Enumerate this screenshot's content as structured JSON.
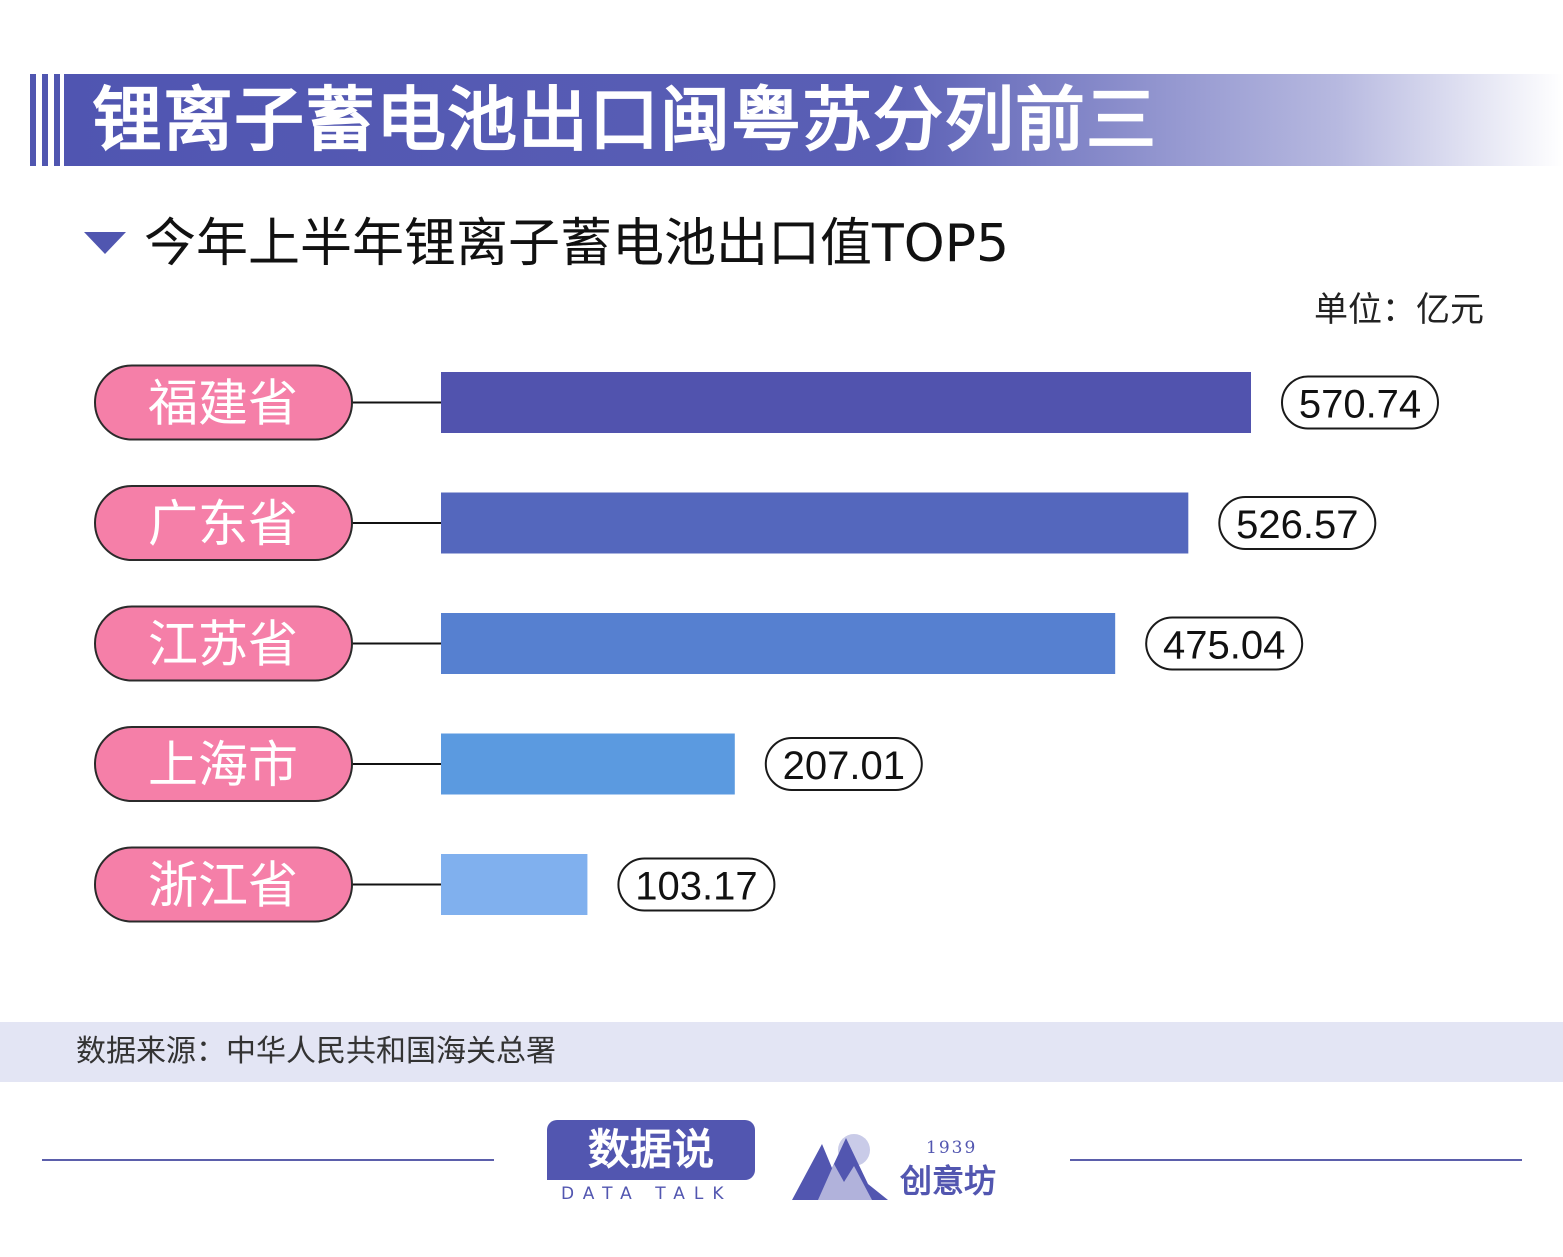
{
  "header": {
    "title": "锂离子蓄电池出口闽粤苏分列前三"
  },
  "chart_data": {
    "type": "bar",
    "orientation": "horizontal",
    "title": "今年上半年锂离子蓄电池出口值TOP5",
    "unit": "单位：亿元",
    "categories": [
      "福建省",
      "广东省",
      "江苏省",
      "上海市",
      "浙江省"
    ],
    "values": [
      570.74,
      526.57,
      475.04,
      207.01,
      103.17
    ],
    "value_labels": [
      "570.74",
      "526.57",
      "475.04",
      "207.01",
      "103.17"
    ],
    "bar_colors": [
      "#5153ae",
      "#5467bd",
      "#5680d0",
      "#5b9ae0",
      "#80b0ee"
    ],
    "label_color": "#f57fa8",
    "legend": "none",
    "grid": false
  },
  "footer": {
    "source": "数据来源：中华人民共和国海关总署",
    "brand_main": "数据说",
    "brand_sub": "DATA TALK",
    "studio_year": "1939",
    "studio_name": "创意坊"
  }
}
